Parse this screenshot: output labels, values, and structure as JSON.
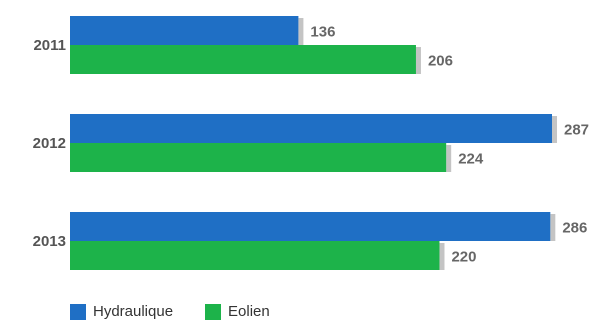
{
  "chart_data": {
    "type": "bar",
    "orientation": "horizontal",
    "categories": [
      "2011",
      "2012",
      "2013"
    ],
    "series": [
      {
        "name": "Hydraulique",
        "color": "#1f6fc5",
        "values": [
          136,
          287,
          286
        ]
      },
      {
        "name": "Eolien",
        "color": "#1db34a",
        "values": [
          206,
          224,
          220
        ]
      }
    ],
    "xlim": [
      0,
      300
    ],
    "grid": false,
    "legend_position": "bottom-left",
    "shadow_color": "#c4c4c4"
  }
}
